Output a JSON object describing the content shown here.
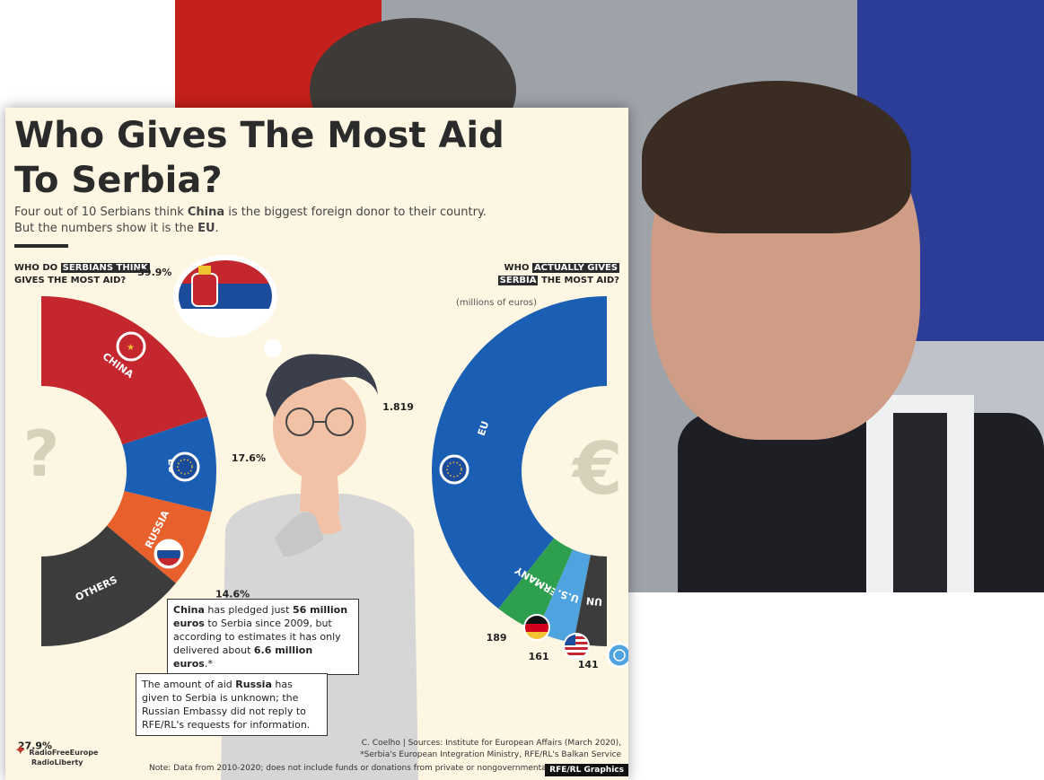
{
  "title": "Who Gives The Most Aid To Serbia?",
  "subtitle_parts": [
    "Four out of 10 Serbians think ",
    "China",
    " is the biggest foreign donor to their country.",
    "But the numbers show it is the ",
    "EU",
    "."
  ],
  "left_heading": {
    "pre": "WHO DO ",
    "highlight": "SERBIANS THINK",
    "post": "GIVES THE MOST AID?"
  },
  "right_heading": {
    "pre": "WHO ",
    "highlight1": "ACTUALLY GIVES",
    "highlight2": "SERBIA",
    "post": " THE MOST AID?"
  },
  "units": "(millions of euros)",
  "center_left_symbol": "?",
  "center_right_symbol": "€",
  "chart_data": [
    {
      "type": "pie",
      "subtype": "donut",
      "title": "WHO DO SERBIANS THINK GIVES THE MOST AID?",
      "categories": [
        "CHINA",
        "EU",
        "RUSSIA",
        "OTHERS"
      ],
      "values": [
        39.9,
        17.6,
        14.6,
        27.9
      ],
      "value_labels": [
        "39.9%",
        "17.6%",
        "14.6%",
        "27.9%"
      ],
      "colors": [
        "#c4272d",
        "#1b5fb4",
        "#e8612c",
        "#3c3c3c"
      ],
      "segment_labels": [
        "CHINA",
        "EU",
        "RUSSIA",
        "OTHERS"
      ],
      "icons": [
        "china-flag-icon",
        "eu-flag-icon",
        "russia-flag-icon",
        ""
      ]
    },
    {
      "type": "pie",
      "subtype": "donut",
      "title": "WHO ACTUALLY GIVES SERBIA THE MOST AID?",
      "unit": "millions of euros",
      "categories": [
        "EU",
        "GERMANY",
        "U.S.",
        "UN"
      ],
      "values": [
        1819,
        189,
        161,
        141
      ],
      "value_labels": [
        "1.819",
        "189",
        "161",
        "141"
      ],
      "colors": [
        "#1b5fb4",
        "#2e9e4f",
        "#4fa3df",
        "#3c3c3c"
      ],
      "segment_labels": [
        "EU",
        "GERMANY",
        "U.S.",
        "UN"
      ],
      "icons": [
        "eu-flag-icon",
        "germany-flag-icon",
        "us-flag-icon",
        "un-logo-icon"
      ]
    }
  ],
  "notes": {
    "china": {
      "parts": [
        "China",
        " has pledged just ",
        "56 million euros",
        " to Serbia since 2009, but according to estimates it has only delivered about ",
        "6.6 million euros",
        ".*"
      ]
    },
    "russia": {
      "parts": [
        "The amount of aid ",
        "Russia",
        " has given to Serbia is unknown; the Russian Embassy did not reply to RFE/RL's requests for information."
      ]
    }
  },
  "credit": [
    "C. Coelho | Sources: Institute for European Affairs (March 2020),",
    "*Serbia's European Integration Ministry, RFE/RL's Balkan Service"
  ],
  "footnote": "Note: Data from 2010-2020; does not include funds or donations from private or nongovernmental",
  "badge": "RFE/RL Graphics",
  "logo": [
    "RadioFreeEurope",
    "RadioLiberty"
  ]
}
